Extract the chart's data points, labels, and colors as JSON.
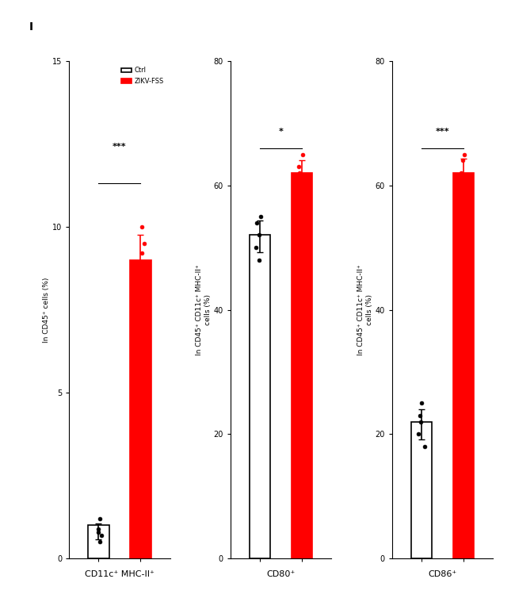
{
  "title": "I",
  "panels": [
    {
      "ylabel": "In CD45⁺ cells (%)",
      "xlabel": "CD11c⁺ MHC-II⁺",
      "ctrl_bar": 1.0,
      "zikv_bar": 9.0,
      "ctrl_dots": [
        0.5,
        0.8,
        1.2,
        0.7,
        0.9
      ],
      "zikv_dots": [
        8.0,
        9.5,
        10.0,
        8.5,
        9.2
      ],
      "ylim": [
        0,
        15
      ],
      "yticks": [
        0,
        5,
        10,
        15
      ],
      "significance": "***"
    },
    {
      "ylabel": "In CD45⁺ CD11c⁺ MHC-II⁺\ncells (%)",
      "xlabel": "CD80⁺",
      "ctrl_bar": 52.0,
      "zikv_bar": 62.0,
      "ctrl_dots": [
        48.0,
        52.0,
        55.0,
        50.0,
        54.0
      ],
      "zikv_dots": [
        58.0,
        62.0,
        65.0,
        60.0,
        63.0
      ],
      "ylim": [
        0,
        80
      ],
      "yticks": [
        0,
        20,
        40,
        60,
        80
      ],
      "significance": "*"
    },
    {
      "ylabel": "In CD45⁺ CD11c⁺ MHC-II⁺\ncells (%)",
      "xlabel": "CD86⁺",
      "ctrl_bar": 22.0,
      "zikv_bar": 62.0,
      "ctrl_dots": [
        18.0,
        22.0,
        25.0,
        20.0,
        23.0
      ],
      "zikv_dots": [
        58.0,
        62.0,
        65.0,
        60.0,
        64.0
      ],
      "ylim": [
        0,
        80
      ],
      "yticks": [
        0,
        20,
        40,
        60,
        80
      ],
      "significance": "***"
    }
  ],
  "ctrl_color": "#000000",
  "zikv_color": "#FF0000",
  "bar_width": 0.5,
  "legend_ctrl": "Ctrl",
  "legend_zikv": "ZIKV-FSS",
  "figure_label": "I",
  "background": "#ffffff"
}
